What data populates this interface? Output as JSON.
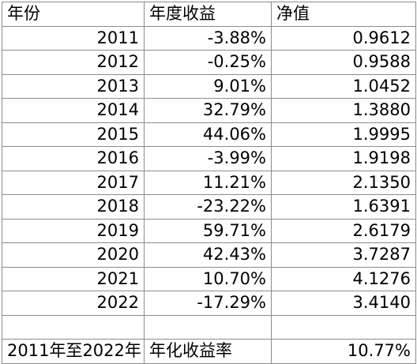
{
  "header": {
    "year": "年份",
    "annual_return": "年度收益",
    "nav": "净值"
  },
  "rows": [
    {
      "year": "2011",
      "return": "-3.88%",
      "nav": "0.9612"
    },
    {
      "year": "2012",
      "return": "-0.25%",
      "nav": "0.9588"
    },
    {
      "year": "2013",
      "return": "9.01%",
      "nav": "1.0452"
    },
    {
      "year": "2014",
      "return": "32.79%",
      "nav": "1.3880"
    },
    {
      "year": "2015",
      "return": "44.06%",
      "nav": "1.9995"
    },
    {
      "year": "2016",
      "return": "-3.99%",
      "nav": "1.9198"
    },
    {
      "year": "2017",
      "return": "11.21%",
      "nav": "2.1350"
    },
    {
      "year": "2018",
      "return": "-23.22%",
      "nav": "1.6391"
    },
    {
      "year": "2019",
      "return": "59.71%",
      "nav": "2.6179"
    },
    {
      "year": "2020",
      "return": "42.43%",
      "nav": "3.7287"
    },
    {
      "year": "2021",
      "return": "10.70%",
      "nav": "4.1276"
    },
    {
      "year": "2022",
      "return": "-17.29%",
      "nav": "3.4140"
    }
  ],
  "summary": {
    "period": "2011年至2022年",
    "metric": "年化收益率",
    "value": "10.77%"
  }
}
